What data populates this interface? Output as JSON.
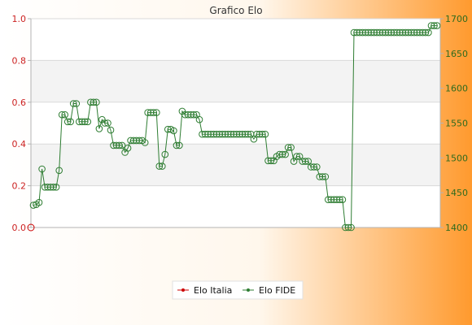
{
  "chart_data": {
    "type": "line",
    "title": "Grafico Elo",
    "left_axis": {
      "ticks": [
        "0.0",
        "0.2",
        "0.4",
        "0.6",
        "0.8",
        "1.0"
      ],
      "range": [
        0,
        1
      ]
    },
    "right_axis": {
      "ticks": [
        "1400",
        "1450",
        "1500",
        "1550",
        "1600",
        "1650",
        "1700"
      ],
      "range": [
        1400,
        1700
      ]
    },
    "grid": true,
    "legend_position": "bottom",
    "series": [
      {
        "name": "Elo Italia",
        "color": "#cc0000",
        "axis": "left",
        "values": [
          0
        ]
      },
      {
        "name": "Elo FIDE",
        "color": "#2e7d32",
        "axis": "right",
        "values": [
          1432,
          1433,
          1436,
          1484,
          1458,
          1458,
          1458,
          1458,
          1458,
          1482,
          1562,
          1562,
          1552,
          1552,
          1578,
          1578,
          1552,
          1552,
          1552,
          1552,
          1580,
          1580,
          1580,
          1542,
          1555,
          1550,
          1550,
          1540,
          1518,
          1518,
          1518,
          1518,
          1508,
          1514,
          1525,
          1525,
          1525,
          1525,
          1525,
          1522,
          1565,
          1565,
          1565,
          1565,
          1488,
          1488,
          1505,
          1541,
          1541,
          1539,
          1518,
          1518,
          1567,
          1562,
          1562,
          1562,
          1562,
          1562,
          1555,
          1534,
          1534,
          1534,
          1534,
          1534,
          1534,
          1534,
          1534,
          1534,
          1534,
          1534,
          1534,
          1534,
          1534,
          1534,
          1534,
          1534,
          1534,
          1527,
          1534,
          1534,
          1534,
          1534,
          1496,
          1496,
          1496,
          1502,
          1505,
          1505,
          1505,
          1515,
          1515,
          1495,
          1502,
          1502,
          1495,
          1495,
          1495,
          1487,
          1487,
          1487,
          1473,
          1473,
          1473,
          1440,
          1440,
          1440,
          1440,
          1440,
          1440,
          1400,
          1400,
          1400,
          1680,
          1680,
          1680,
          1680,
          1680,
          1680,
          1680,
          1680,
          1680,
          1680,
          1680,
          1680,
          1680,
          1680,
          1680,
          1680,
          1680,
          1680,
          1680,
          1680,
          1680,
          1680,
          1680,
          1680,
          1680,
          1680,
          1680,
          1690,
          1690,
          1690
        ]
      }
    ]
  }
}
